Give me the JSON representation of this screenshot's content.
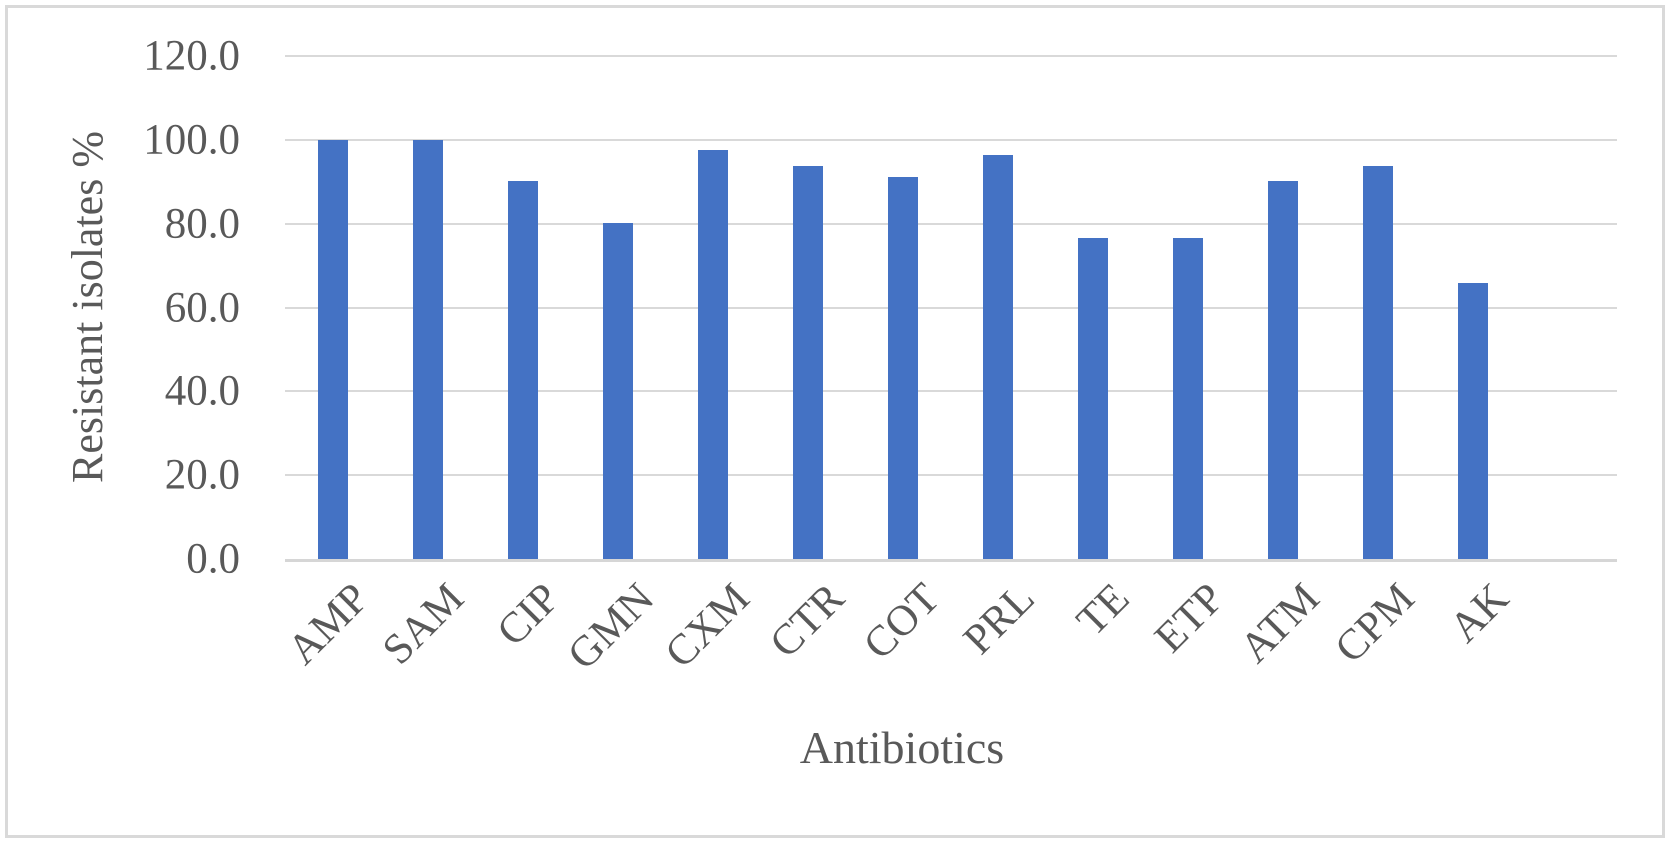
{
  "chart_data": {
    "type": "bar",
    "title": "",
    "xlabel": "Antibiotics",
    "ylabel": "Resistant isolates %",
    "categories": [
      "AMP",
      "SAM",
      "CIP",
      "GMN",
      "CXM",
      "CTR",
      "COT",
      "PRL",
      "TE",
      "ETP",
      "ATM",
      "CPM",
      "AK"
    ],
    "values": [
      100.0,
      100.0,
      90.2,
      80.3,
      97.5,
      93.7,
      91.2,
      96.4,
      76.7,
      76.7,
      90.2,
      93.7,
      65.8
    ],
    "ylim": [
      0,
      120
    ],
    "ytick_step": 20,
    "ytick_labels": [
      "0.0",
      "20.0",
      "40.0",
      "60.0",
      "80.0",
      "100.0",
      "120.0"
    ],
    "grid": true,
    "legend": "none",
    "bar_color": "#4472C4",
    "text_color": "#595959",
    "grid_color": "#D9D9D9"
  }
}
